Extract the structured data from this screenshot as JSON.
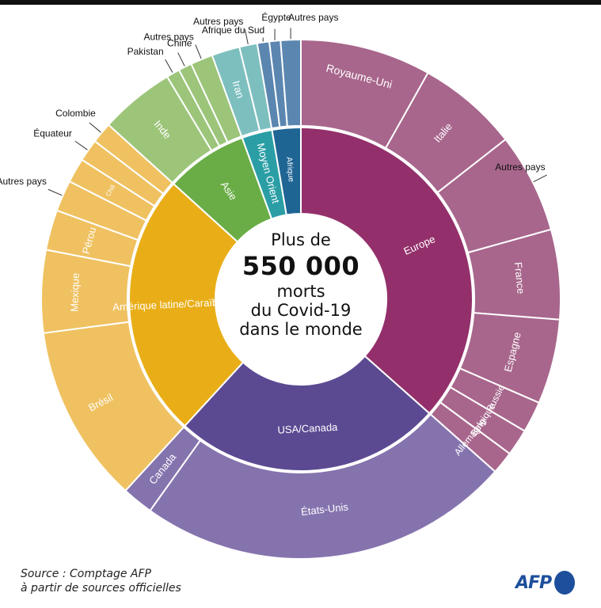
{
  "chart_data": {
    "type": "sunburst",
    "title": "Plus de 550 000 morts du Covid-19 dans le monde",
    "center": {
      "line1": "Plus de",
      "big": "550 000",
      "line3": "morts",
      "line4": "du Covid-19",
      "line5": "dans le monde"
    },
    "unit": "share of worldwide deaths (degrees of 360, estimated from figure)",
    "regions": [
      {
        "name": "Europe",
        "color": "#93306b",
        "child_color": "#a8668c",
        "start": 0,
        "end": 131.6,
        "children": [
          {
            "name": "Royaume-Uni",
            "start": 0,
            "end": 29.3
          },
          {
            "name": "Italie",
            "start": 29.3,
            "end": 52
          },
          {
            "name": "Autres pays",
            "start": 52,
            "end": 74.4
          },
          {
            "name": "France",
            "start": 74.4,
            "end": 94.5
          },
          {
            "name": "Espagne",
            "start": 94.5,
            "end": 113.5
          },
          {
            "name": "Russie",
            "start": 113.5,
            "end": 120.5
          },
          {
            "name": "Belgique",
            "start": 120.5,
            "end": 126.5
          },
          {
            "name": "Allemagne",
            "start": 126.5,
            "end": 131.6
          }
        ]
      },
      {
        "name": "USA/Canada",
        "color": "#5b4a92",
        "child_color": "#8573ae",
        "start": 131.6,
        "end": 222.5,
        "children": [
          {
            "name": "États-Unis",
            "start": 131.6,
            "end": 215.5
          },
          {
            "name": "Canada",
            "start": 215.5,
            "end": 222.5
          }
        ]
      },
      {
        "name": "Amérique latine/Caraïbes",
        "color": "#e9ae17",
        "child_color": "#efc160",
        "start": 222.5,
        "end": 312.2,
        "children": [
          {
            "name": "Brésil",
            "start": 222.5,
            "end": 262.5
          },
          {
            "name": "Mexique",
            "start": 262.5,
            "end": 281
          },
          {
            "name": "Pérou",
            "start": 281,
            "end": 290
          },
          {
            "name": "Autres pays",
            "start": 290,
            "end": 297
          },
          {
            "name": "Chili",
            "start": 297,
            "end": 302.5
          },
          {
            "name": "Équateur",
            "start": 302.5,
            "end": 307.5
          },
          {
            "name": "Colombie",
            "start": 307.5,
            "end": 312.2
          }
        ]
      },
      {
        "name": "Asie",
        "color": "#6aad46",
        "child_color": "#9cc57a",
        "start": 312.2,
        "end": 340,
        "children": [
          {
            "name": "Inde",
            "start": 312.2,
            "end": 329
          },
          {
            "name": "Pakistan",
            "start": 329,
            "end": 332
          },
          {
            "name": "Chine",
            "start": 332,
            "end": 335
          },
          {
            "name": "Autres pays",
            "start": 335,
            "end": 340
          }
        ]
      },
      {
        "name": "Moyen Orient",
        "color": "#2b9ea5",
        "child_color": "#7dbfbf",
        "start": 340,
        "end": 350.3,
        "children": [
          {
            "name": "Iran",
            "start": 340,
            "end": 346.3
          },
          {
            "name": "Autres pays",
            "start": 346.3,
            "end": 350.3
          }
        ]
      },
      {
        "name": "Afrique",
        "color": "#1f6594",
        "child_color": "#5b86b0",
        "start": 350.3,
        "end": 360,
        "children": [
          {
            "name": "Afrique du Sud",
            "start": 350.3,
            "end": 353
          },
          {
            "name": "Égypte",
            "start": 353,
            "end": 355.5
          },
          {
            "name": "Autres pays",
            "start": 355.5,
            "end": 360
          }
        ]
      }
    ],
    "external_labels": [
      "Égypte",
      "Autres pays",
      "Afrique du Sud",
      "Chine",
      "Pakistan",
      "Colombie",
      "Équateur"
    ]
  },
  "source": {
    "line1": "Source : Comptage AFP",
    "line2": "à partir de sources officielles"
  },
  "logo": {
    "text": "AFP",
    "color": "#1d4f9c"
  }
}
